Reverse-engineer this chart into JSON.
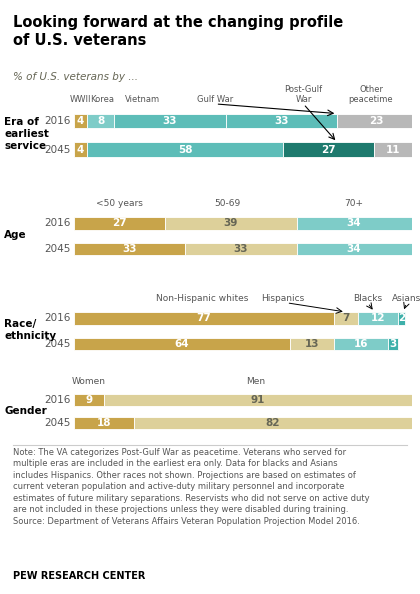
{
  "title": "Looking forward at the changing profile\nof U.S. veterans",
  "subtitle": "% of U.S. veterans by ...",
  "note": "Note: The VA categorizes Post-Gulf War as peacetime. Veterans who served for\nmultiple eras are included in the earliest era only. Data for blacks and Asians\nincludes Hispanics. Other races not shown. Projections are based on estimates of\ncurrent veteran population and active-duty military personnel and incorporate\nestimates of future military separations. Reservists who did not serve on active duty\nare not included in these projections unless they were disabled during training.\nSource: Department of Veterans Affairs Veteran Population Projection Model 2016.",
  "source": "PEW RESEARCH CENTER",
  "era_colors": [
    "#c8a44a",
    "#7eccc8",
    "#5dbdb8",
    "#5dbdb8",
    "#1e7a6e",
    "#b8b8b8"
  ],
  "age_colors": [
    "#c8a44a",
    "#ddd09a",
    "#7eccc8"
  ],
  "race_colors": [
    "#c8a44a",
    "#ddd09a",
    "#7eccc8",
    "#3eb0aa"
  ],
  "gender_colors": [
    "#c8a44a",
    "#ddd09a"
  ],
  "era_2016": [
    4,
    8,
    33,
    33,
    0,
    23
  ],
  "era_2045": [
    4,
    0,
    58,
    0,
    27,
    11
  ],
  "era_labels_2016": [
    "4",
    "8",
    "33",
    "33",
    "",
    "23"
  ],
  "era_labels_2045": [
    "4",
    "",
    "58",
    "",
    "27",
    "11"
  ],
  "age_2016": [
    27,
    39,
    34
  ],
  "age_2045": [
    33,
    33,
    34
  ],
  "age_labels_2016": [
    "27",
    "39",
    "34"
  ],
  "age_labels_2045": [
    "33",
    "33",
    "34"
  ],
  "race_2016": [
    77,
    7,
    12,
    2
  ],
  "race_2045": [
    64,
    13,
    16,
    3
  ],
  "race_labels_2016": [
    "77",
    "7",
    "12",
    "2"
  ],
  "race_labels_2045": [
    "64",
    "13",
    "16",
    "3"
  ],
  "gender_2016": [
    9,
    91
  ],
  "gender_2045": [
    18,
    82
  ],
  "gender_labels_2016": [
    "9",
    "91"
  ],
  "gender_labels_2045": [
    "18",
    "82"
  ]
}
